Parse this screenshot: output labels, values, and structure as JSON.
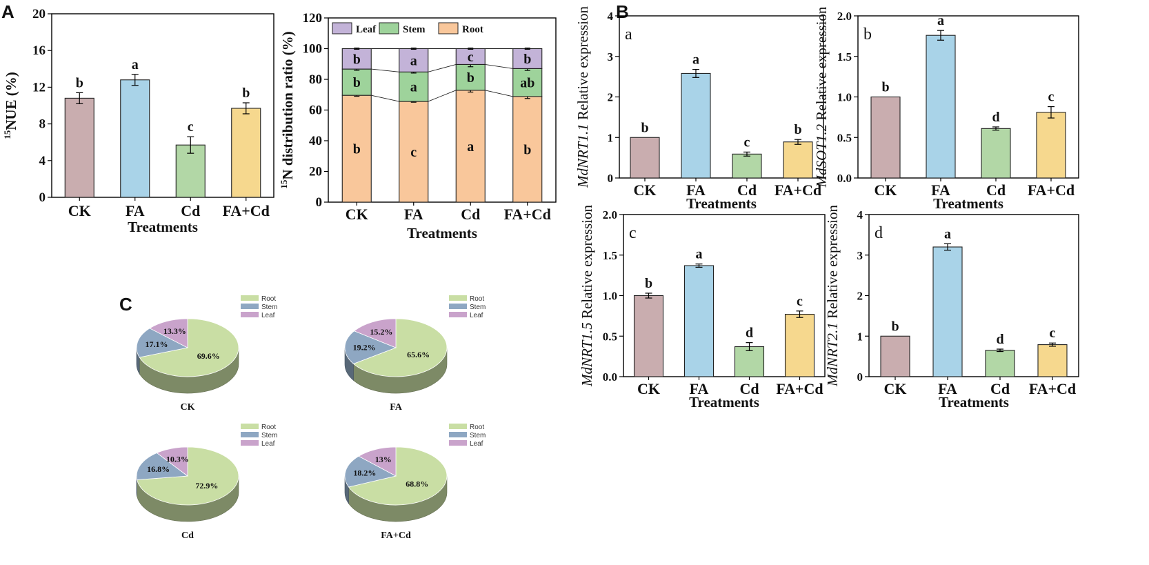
{
  "panel_labels": {
    "A": "A",
    "B": "B",
    "C": "C"
  },
  "colors": {
    "CK": "#c9adaf",
    "FA": "#a9d3e8",
    "Cd": "#b2d7a6",
    "FA+Cd": "#f6d88e",
    "root_bar": "#f9c79b",
    "stem_bar": "#9ed39b",
    "leaf_bar": "#c3b3d8",
    "pie_root": "#c9dea4",
    "pie_stem": "#8ea7c2",
    "pie_leaf": "#c9a3cb"
  },
  "chart_data": [
    {
      "id": "A_nue",
      "type": "bar",
      "categories": [
        "CK",
        "FA",
        "Cd",
        "FA+Cd"
      ],
      "values": [
        10.8,
        12.8,
        5.7,
        9.7
      ],
      "errors": [
        0.6,
        0.6,
        0.9,
        0.6
      ],
      "letters": [
        "b",
        "a",
        "c",
        "b"
      ],
      "ylabel_sup": "15",
      "ylabel": "NUE (%)",
      "xlabel": "Treatments",
      "ylim": [
        0,
        20
      ],
      "yticks": [
        "0",
        "4",
        "8",
        "12",
        "16",
        "20"
      ]
    },
    {
      "id": "A_distribution",
      "type": "bar",
      "stacked": true,
      "categories": [
        "CK",
        "FA",
        "Cd",
        "FA+Cd"
      ],
      "series": [
        {
          "name": "Root",
          "values": [
            69.6,
            65.6,
            72.9,
            68.8
          ],
          "cum_errors": [
            0.6,
            0.5,
            1.2,
            1.3
          ],
          "letters": [
            "b",
            "c",
            "a",
            "b"
          ]
        },
        {
          "name": "Stem",
          "values": [
            17.1,
            19.2,
            16.8,
            18.2
          ],
          "cum_errors": [
            0.8,
            0.7,
            1.5,
            1.2
          ],
          "letters": [
            "b",
            "a",
            "b",
            "ab"
          ]
        },
        {
          "name": "Leaf",
          "values": [
            13.3,
            15.2,
            10.3,
            13.0
          ],
          "cum_errors": [
            0.4,
            0.4,
            0.4,
            0.4
          ],
          "letters": [
            "b",
            "a",
            "c",
            "b"
          ]
        }
      ],
      "legend": [
        "Leaf",
        "Stem",
        "Root"
      ],
      "ylabel_sup": "15",
      "ylabel": "N distribution ratio (%)",
      "xlabel": "Treatments",
      "ylim": [
        0,
        120
      ],
      "yticks": [
        "0",
        "20",
        "40",
        "60",
        "80",
        "100",
        "120"
      ]
    },
    {
      "id": "B_a",
      "type": "bar",
      "sub_label": "a",
      "gene": "MdNRT1.1",
      "ylabel_rest": " Relative expression",
      "categories": [
        "CK",
        "FA",
        "Cd",
        "FA+Cd"
      ],
      "values": [
        1.0,
        2.58,
        0.59,
        0.89
      ],
      "errors": [
        0.0,
        0.1,
        0.05,
        0.06
      ],
      "letters": [
        "b",
        "a",
        "c",
        "b"
      ],
      "xlabel": "Treatments",
      "ylim": [
        0,
        4
      ],
      "yticks": [
        "0",
        "1",
        "2",
        "3",
        "4"
      ]
    },
    {
      "id": "B_b",
      "type": "bar",
      "sub_label": "b",
      "gene": "MdSOT1.2",
      "ylabel_rest": " Relative expression",
      "categories": [
        "CK",
        "FA",
        "Cd",
        "FA+Cd"
      ],
      "values": [
        1.0,
        1.76,
        0.61,
        0.81
      ],
      "errors": [
        0.0,
        0.06,
        0.02,
        0.07
      ],
      "letters": [
        "b",
        "a",
        "d",
        "c"
      ],
      "xlabel": "Treatments",
      "ylim": [
        0,
        2.0
      ],
      "yticks": [
        "0.0",
        "0.5",
        "1.0",
        "1.5",
        "2.0"
      ]
    },
    {
      "id": "B_c",
      "type": "bar",
      "sub_label": "c",
      "gene": "MdNRT1.5",
      "ylabel_rest": " Relative expression",
      "categories": [
        "CK",
        "FA",
        "Cd",
        "FA+Cd"
      ],
      "values": [
        1.0,
        1.37,
        0.37,
        0.77
      ],
      "errors": [
        0.03,
        0.02,
        0.05,
        0.04
      ],
      "letters": [
        "b",
        "a",
        "d",
        "c"
      ],
      "xlabel": "Treatments",
      "ylim": [
        0,
        2.0
      ],
      "yticks": [
        "0.0",
        "0.5",
        "1.0",
        "1.5",
        "2.0"
      ]
    },
    {
      "id": "B_d",
      "type": "bar",
      "sub_label": "d",
      "gene": "MdNRT2.1",
      "ylabel_rest": " Relative expression",
      "categories": [
        "CK",
        "FA",
        "Cd",
        "FA+Cd"
      ],
      "values": [
        1.0,
        3.2,
        0.65,
        0.79
      ],
      "errors": [
        0.0,
        0.08,
        0.03,
        0.04
      ],
      "letters": [
        "b",
        "a",
        "d",
        "c"
      ],
      "xlabel": "Treatments",
      "ylim": [
        0,
        4
      ],
      "yticks": [
        "0",
        "1",
        "2",
        "3",
        "4"
      ]
    },
    {
      "id": "C_CK",
      "type": "pie",
      "title": "CK",
      "labels": [
        "Root",
        "Stem",
        "Leaf"
      ],
      "values": [
        69.6,
        17.1,
        13.3
      ],
      "value_labels": [
        "69.6%",
        "17.1%",
        "13.3%"
      ]
    },
    {
      "id": "C_FA",
      "type": "pie",
      "title": "FA",
      "labels": [
        "Root",
        "Stem",
        "Leaf"
      ],
      "values": [
        65.6,
        19.2,
        15.2
      ],
      "value_labels": [
        "65.6%",
        "19.2%",
        "15.2%"
      ]
    },
    {
      "id": "C_Cd",
      "type": "pie",
      "title": "Cd",
      "labels": [
        "Root",
        "Stem",
        "Leaf"
      ],
      "values": [
        72.9,
        16.8,
        10.3
      ],
      "value_labels": [
        "72.9%",
        "16.8%",
        "10.3%"
      ]
    },
    {
      "id": "C_FACd",
      "type": "pie",
      "title": "FA+Cd",
      "labels": [
        "Root",
        "Stem",
        "Leaf"
      ],
      "values": [
        68.8,
        18.2,
        13
      ],
      "value_labels": [
        "68.8%",
        "18.2%",
        "13%"
      ]
    }
  ]
}
